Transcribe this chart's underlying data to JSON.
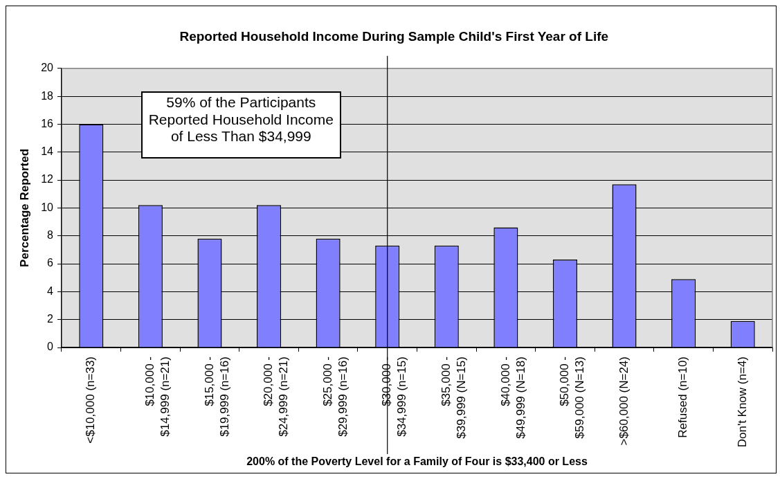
{
  "chart_data": {
    "type": "bar",
    "title": "Reported Household Income During Sample Child's First Year of Life",
    "xlabel": "200% of the Poverty Level for a Family of Four is $33,400 or Less",
    "ylabel": "Percentage Reported",
    "categories": [
      "<$10,000 (n=33)",
      "$10,000 - $14,999 (n=21)",
      "$15,000 - $19,999 (n=16)",
      "$20,000 - $24,999 (n=21)",
      "$25,000 - $29,999 (n=16)",
      "$30,000 - $34,999 (n=15)",
      "$35,000 - $39,999 (N=15)",
      "$40,000 - $49,999 (N=18)",
      "$50,000 - $59,000 (N=13)",
      ">$60,000 (N=24)",
      "Refused (n=10)",
      "Don't Know (n=4)"
    ],
    "values": [
      16,
      10.2,
      7.8,
      10.2,
      7.8,
      7.3,
      7.3,
      8.6,
      6.3,
      11.7,
      4.9,
      1.9
    ],
    "color": "#8080ff",
    "ylim": [
      0,
      20
    ],
    "yticks": [
      0,
      2,
      4,
      6,
      8,
      10,
      12,
      14,
      16,
      18,
      20
    ],
    "grid": "y",
    "legend": false,
    "ref_lines": [
      {
        "axis": "x",
        "value": "$30,000 - $34,999 (n=15)",
        "color": "#000000"
      }
    ],
    "annotations": [
      "59% of the Participants\nReported Household Income\nof Less Than $34,999"
    ]
  }
}
